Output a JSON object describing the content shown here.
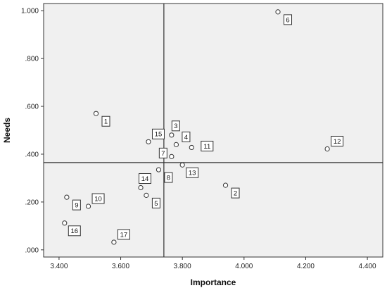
{
  "chart_data": {
    "type": "scatter",
    "title": "",
    "xlabel": "Importance",
    "ylabel": "Needs",
    "xlim": [
      3.35,
      4.45
    ],
    "ylim": [
      -0.03,
      1.03
    ],
    "x_ticks": [
      3.4,
      3.6,
      3.8,
      4.0,
      4.2,
      4.4
    ],
    "x_tick_labels": [
      "3.400",
      "3.600",
      "3.800",
      "4.000",
      "4.200",
      "4.400"
    ],
    "y_ticks": [
      0.0,
      0.2,
      0.4,
      0.6,
      0.8,
      1.0
    ],
    "y_tick_labels": [
      ".000",
      ".200",
      ".400",
      ".600",
      ".800",
      "1.000"
    ],
    "grid": false,
    "reference_lines": {
      "x": 3.74,
      "y": 0.365
    },
    "colors": {
      "plot_background": "#f0f0f0",
      "marker_stroke": "#333333",
      "marker_fill": "#ffffff",
      "line": "#333333"
    },
    "points": [
      {
        "label": "1",
        "x": 3.52,
        "y": 0.57,
        "label_pos": "below-right"
      },
      {
        "label": "2",
        "x": 3.94,
        "y": 0.27,
        "label_pos": "below-right"
      },
      {
        "label": "3",
        "x": 3.765,
        "y": 0.48,
        "label_pos": "above-left"
      },
      {
        "label": "4",
        "x": 3.78,
        "y": 0.44,
        "label_pos": "above-right"
      },
      {
        "label": "5",
        "x": 3.683,
        "y": 0.228,
        "label_pos": "below-right"
      },
      {
        "label": "6",
        "x": 4.11,
        "y": 0.995,
        "label_pos": "below-right"
      },
      {
        "label": "7",
        "x": 3.765,
        "y": 0.39,
        "label_pos": "left"
      },
      {
        "label": "8",
        "x": 3.723,
        "y": 0.335,
        "label_pos": "below-right"
      },
      {
        "label": "9",
        "x": 3.425,
        "y": 0.22,
        "label_pos": "below-right"
      },
      {
        "label": "10",
        "x": 3.495,
        "y": 0.182,
        "label_pos": "above-right"
      },
      {
        "label": "11",
        "x": 3.83,
        "y": 0.428,
        "label_pos": "right"
      },
      {
        "label": "12",
        "x": 4.27,
        "y": 0.422,
        "label_pos": "above-right"
      },
      {
        "label": "13",
        "x": 3.8,
        "y": 0.355,
        "label_pos": "below-right"
      },
      {
        "label": "14",
        "x": 3.665,
        "y": 0.26,
        "label_pos": "above-left"
      },
      {
        "label": "15",
        "x": 3.69,
        "y": 0.452,
        "label_pos": "above-right"
      },
      {
        "label": "16",
        "x": 3.418,
        "y": 0.112,
        "label_pos": "below-right"
      },
      {
        "label": "17",
        "x": 3.578,
        "y": 0.032,
        "label_pos": "above-right"
      }
    ]
  }
}
